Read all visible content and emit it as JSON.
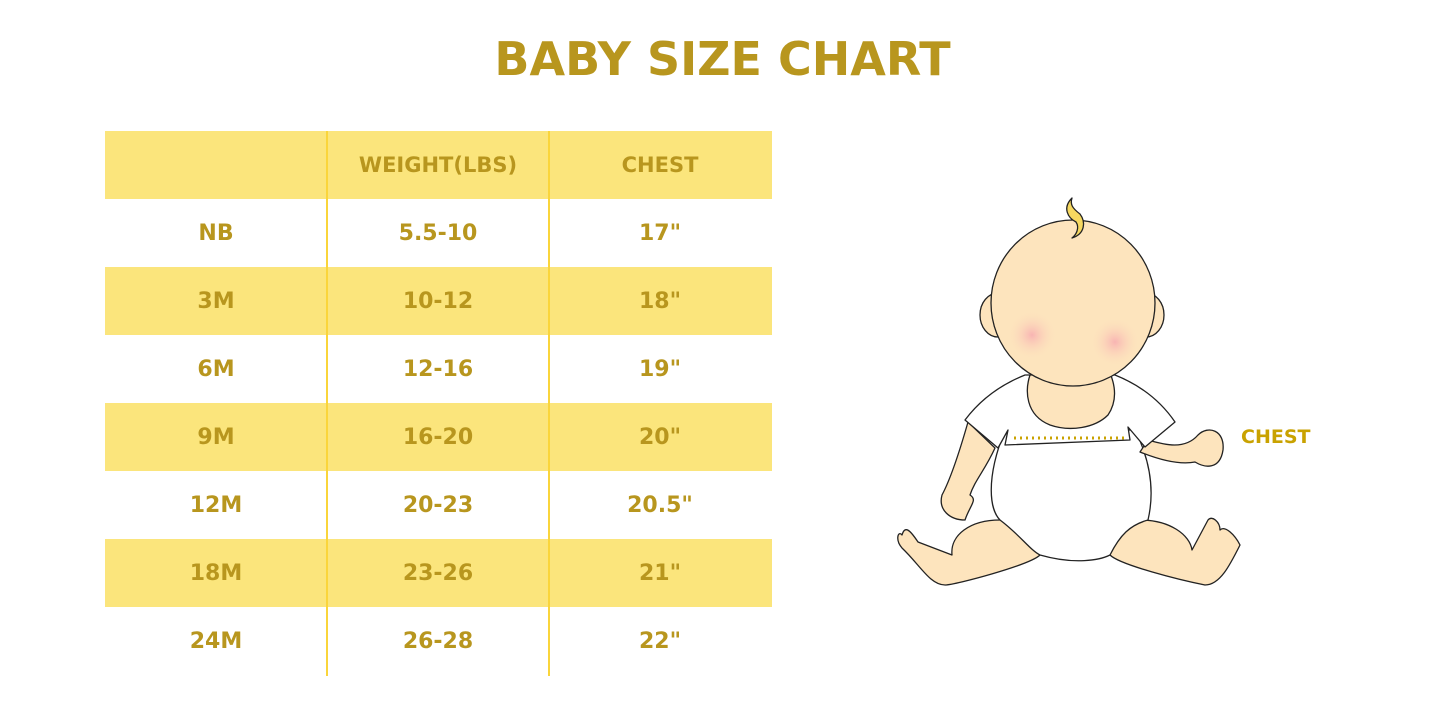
{
  "title": "BABY SIZE CHART",
  "table": {
    "headers": [
      "",
      "WEIGHT(LBS)",
      "CHEST"
    ],
    "rows": [
      [
        "NB",
        "5.5-10",
        "17\""
      ],
      [
        "3M",
        "10-12",
        "18\""
      ],
      [
        "6M",
        "12-16",
        "19\""
      ],
      [
        "9M",
        "16-20",
        "20\""
      ],
      [
        "12M",
        "20-23",
        "20.5\""
      ],
      [
        "18M",
        "23-26",
        "21\""
      ],
      [
        "24M",
        "26-28",
        "22\""
      ]
    ]
  },
  "illustration": {
    "label": "CHEST"
  },
  "colors": {
    "text": "#b8961e",
    "band": "#fbe57c",
    "divider": "#fad53b",
    "skin": "#fde4bd",
    "hair": "#f6d860"
  }
}
